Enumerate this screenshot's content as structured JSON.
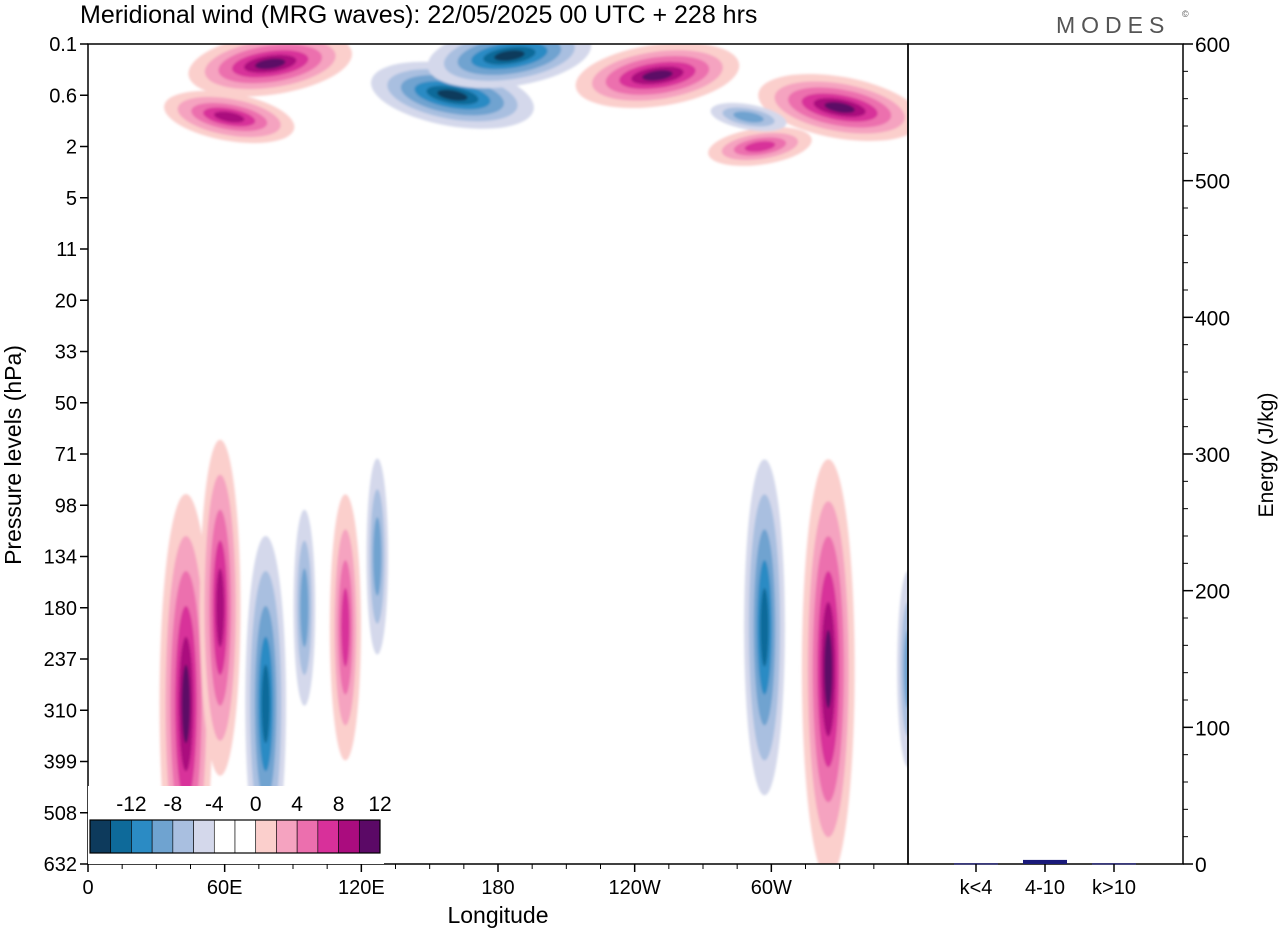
{
  "header": {
    "title": "Meridional wind (MRG waves):  22/05/2025  00 UTC  + 228 hrs",
    "brand": "MODES",
    "brand_mark": "©"
  },
  "chart_data": [
    {
      "type": "heatmap",
      "title": "Meridional wind (MRG waves):  22/05/2025  00 UTC  + 228 hrs",
      "xlabel": "Longitude",
      "ylabel": "Pressure levels (hPa)",
      "x_ticks": [
        "0",
        "60E",
        "120E",
        "180",
        "120W",
        "60W"
      ],
      "x_tick_degrees": [
        0,
        60,
        120,
        180,
        240,
        300
      ],
      "xlim": [
        0,
        360
      ],
      "y_ticks": [
        "0.1",
        "0.6",
        "2",
        "5",
        "11",
        "20",
        "33",
        "50",
        "71",
        "98",
        "134",
        "180",
        "237",
        "310",
        "399",
        "508",
        "632"
      ],
      "y_scale": "pressure levels, top 0.1 hPa to bottom 632 hPa",
      "colorbar": {
        "labels": [
          "-12",
          "-8",
          "-4",
          "0",
          "4",
          "8",
          "12"
        ],
        "levels": [
          -14,
          -12,
          -10,
          -8,
          -6,
          -4,
          -2,
          0,
          2,
          4,
          6,
          8,
          10,
          12,
          14
        ],
        "colors": [
          "#0d3a5c",
          "#0e6a9a",
          "#2b8bc4",
          "#6fa3d0",
          "#a9bfe0",
          "#d4d8eb",
          "#ffffff",
          "#ffffff",
          "#fbcfcc",
          "#f5a3c0",
          "#ec6fae",
          "#d8309a",
          "#aa0c7e",
          "#5b0966"
        ],
        "placement": "bottom-left inside plot"
      },
      "features": [
        {
          "lon": 43,
          "plev": "300",
          "sign": "positive",
          "max": 12
        },
        {
          "lon": 58,
          "plev": "180",
          "sign": "positive",
          "max": 10
        },
        {
          "lon": 78,
          "plev": "300",
          "sign": "negative",
          "min": -10
        },
        {
          "lon": 95,
          "plev": "180",
          "sign": "negative",
          "min": -6
        },
        {
          "lon": 113,
          "plev": "200",
          "sign": "positive",
          "max": 8
        },
        {
          "lon": 127,
          "plev": "134",
          "sign": "negative",
          "min": -6
        },
        {
          "lon": 297,
          "plev": "200",
          "sign": "negative",
          "min": -10
        },
        {
          "lon": 325,
          "plev": "250",
          "sign": "positive",
          "max": 12
        },
        {
          "lon": 360,
          "plev": "250",
          "sign": "negative",
          "min": -6
        },
        {
          "lon": 250,
          "plev": "0.3",
          "sign": "positive",
          "max": 14
        },
        {
          "lon": 160,
          "plev": "0.6",
          "sign": "negative",
          "min": -14
        },
        {
          "lon": 185,
          "plev": "0.15",
          "sign": "negative",
          "min": -12
        },
        {
          "lon": 62,
          "plev": "1",
          "sign": "positive",
          "max": 10
        },
        {
          "lon": 80,
          "plev": "0.2",
          "sign": "positive",
          "max": 12
        },
        {
          "lon": 330,
          "plev": "0.8",
          "sign": "positive",
          "max": 12
        },
        {
          "lon": 295,
          "plev": "2",
          "sign": "positive",
          "max": 8
        },
        {
          "lon": 290,
          "plev": "1",
          "sign": "negative",
          "min": -6
        }
      ]
    },
    {
      "type": "bar",
      "ylabel": "Energy (J/kg)",
      "ylim": [
        0,
        600
      ],
      "y_ticks": [
        "0",
        "100",
        "200",
        "300",
        "400",
        "500",
        "600"
      ],
      "categories": [
        "k<4",
        "4-10",
        "k>10"
      ],
      "values": [
        0.5,
        3,
        0.5
      ],
      "bar_color": "#1a1a7a"
    }
  ]
}
